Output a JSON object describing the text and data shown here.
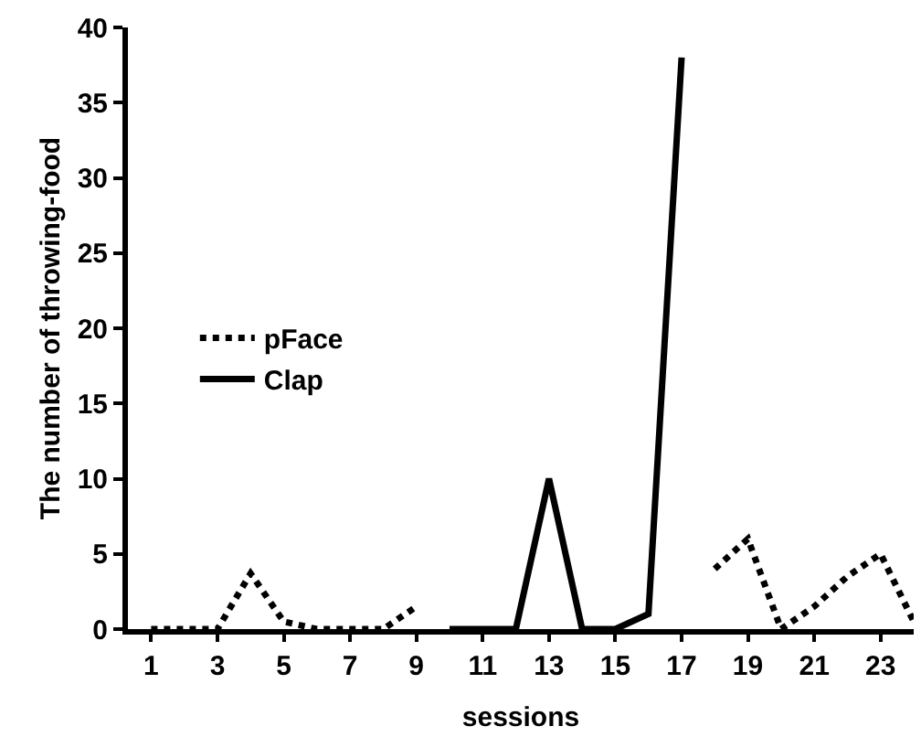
{
  "chart_data": {
    "type": "line",
    "xlabel": "sessions",
    "ylabel": "The number of throwing-food",
    "x": [
      1,
      2,
      3,
      4,
      5,
      6,
      7,
      8,
      9,
      10,
      11,
      12,
      13,
      14,
      15,
      16,
      17,
      18,
      19,
      20,
      21,
      22,
      23,
      24
    ],
    "series": [
      {
        "name": "pFace",
        "color": "#000000",
        "line_style": "dotted",
        "values": [
          0,
          0,
          0,
          3.7,
          0.5,
          0,
          0,
          0,
          1.5,
          null,
          null,
          null,
          null,
          null,
          null,
          null,
          null,
          4,
          6,
          0,
          1.5,
          3.5,
          5,
          0.5
        ]
      },
      {
        "name": "Clap",
        "color": "#000000",
        "line_style": "solid",
        "values": [
          null,
          null,
          null,
          null,
          null,
          null,
          null,
          null,
          null,
          0,
          0,
          0,
          10,
          0,
          0,
          1,
          38,
          null,
          null,
          null,
          null,
          null,
          null,
          null
        ]
      }
    ],
    "xlim": [
      0.3,
      24
    ],
    "xticks": [
      1,
      3,
      5,
      7,
      9,
      11,
      13,
      15,
      17,
      19,
      21,
      23
    ],
    "ylim": [
      0,
      40
    ],
    "yticks": [
      0,
      5,
      10,
      15,
      20,
      25,
      30,
      35,
      40
    ],
    "legend": "left",
    "marker": "none"
  }
}
